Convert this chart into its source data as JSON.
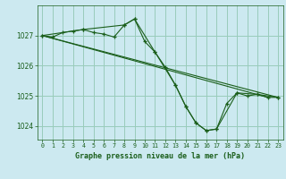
{
  "background_color": "#cce9f0",
  "grid_color": "#99ccbb",
  "line_color": "#1a5e1a",
  "title": "Graphe pression niveau de la mer (hPa)",
  "xlim": [
    -0.5,
    23.5
  ],
  "ylim": [
    1023.55,
    1028.0
  ],
  "yticks": [
    1024,
    1025,
    1026,
    1027
  ],
  "xticks": [
    0,
    1,
    2,
    3,
    4,
    5,
    6,
    7,
    8,
    9,
    10,
    11,
    12,
    13,
    14,
    15,
    16,
    17,
    18,
    19,
    20,
    21,
    22,
    23
  ],
  "series": [
    {
      "x": [
        0,
        1,
        2,
        3,
        4,
        5,
        6,
        7,
        8,
        9,
        10,
        11,
        12,
        13,
        14,
        15,
        16,
        17,
        18,
        19,
        20,
        21,
        22,
        23
      ],
      "y": [
        1027.0,
        1026.95,
        1027.1,
        1027.15,
        1027.2,
        1027.1,
        1027.05,
        1026.95,
        1027.35,
        1027.55,
        1026.8,
        1026.45,
        1025.95,
        1025.35,
        1024.65,
        1024.1,
        1023.85,
        1023.9,
        1024.75,
        1025.1,
        1025.0,
        1025.05,
        1024.95,
        1024.95
      ]
    },
    {
      "x": [
        0,
        23
      ],
      "y": [
        1027.0,
        1024.95
      ]
    },
    {
      "x": [
        0,
        22
      ],
      "y": [
        1027.0,
        1024.95
      ]
    },
    {
      "x": [
        0,
        4,
        8,
        9,
        11,
        13,
        14,
        15,
        16,
        17,
        19,
        21,
        23
      ],
      "y": [
        1027.0,
        1027.2,
        1027.35,
        1027.55,
        1026.45,
        1025.35,
        1024.65,
        1024.1,
        1023.85,
        1023.9,
        1025.1,
        1025.05,
        1024.95
      ]
    }
  ]
}
